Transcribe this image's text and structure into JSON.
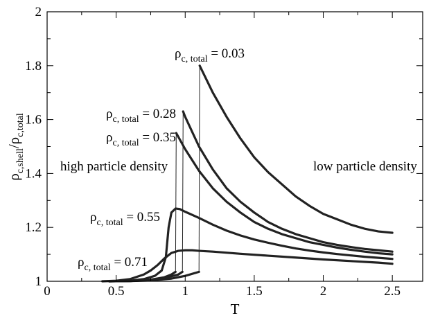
{
  "chart_data": {
    "type": "line",
    "title": "",
    "xlabel": "T",
    "ylabel": {
      "rho": "ρ",
      "num_sub": "c,shell",
      "slash": "/",
      "den_rho": "ρ",
      "den_sub": "c,total"
    },
    "xlim": [
      0,
      2.72
    ],
    "ylim": [
      1,
      2
    ],
    "xticks": [
      "0",
      "0.5",
      "1",
      "1.5",
      "2",
      "2.5"
    ],
    "xtick_values": [
      0,
      0.5,
      1,
      1.5,
      2,
      2.5
    ],
    "yticks": [
      "1",
      "1.2",
      "1.4",
      "1.6",
      "1.8",
      "2"
    ],
    "ytick_values": [
      1,
      1.2,
      1.4,
      1.6,
      1.8,
      2
    ],
    "grid": false,
    "legend": "none",
    "series": [
      {
        "label": "ρc, total = 0.03",
        "x": [
          0.45,
          0.6,
          0.75,
          0.9,
          1.0,
          1.1,
          1.105,
          1.2,
          1.3,
          1.4,
          1.5,
          1.6,
          1.7,
          1.8,
          1.9,
          2.0,
          2.1,
          2.2,
          2.3,
          2.4,
          2.5
        ],
        "y": [
          1.0,
          1.001,
          1.003,
          1.01,
          1.02,
          1.035,
          1.8,
          1.7,
          1.61,
          1.53,
          1.46,
          1.405,
          1.36,
          1.315,
          1.28,
          1.25,
          1.23,
          1.21,
          1.195,
          1.185,
          1.18
        ]
      },
      {
        "label": "ρc, total = 0.28",
        "x": [
          0.45,
          0.6,
          0.75,
          0.85,
          0.95,
          0.98,
          0.985,
          1.0,
          1.1,
          1.2,
          1.3,
          1.4,
          1.5,
          1.6,
          1.7,
          1.8,
          1.9,
          2.0,
          2.1,
          2.2,
          2.3,
          2.4,
          2.5
        ],
        "y": [
          1.0,
          1.001,
          1.005,
          1.012,
          1.025,
          1.035,
          1.63,
          1.61,
          1.5,
          1.415,
          1.345,
          1.295,
          1.255,
          1.22,
          1.195,
          1.175,
          1.16,
          1.145,
          1.135,
          1.127,
          1.12,
          1.115,
          1.11
        ]
      },
      {
        "label": "ρc, total = 0.35",
        "x": [
          0.45,
          0.6,
          0.75,
          0.85,
          0.9,
          0.93,
          0.935,
          1.0,
          1.1,
          1.2,
          1.3,
          1.4,
          1.5,
          1.6,
          1.7,
          1.8,
          1.9,
          2.0,
          2.1,
          2.2,
          2.3,
          2.4,
          2.5
        ],
        "y": [
          1.0,
          1.001,
          1.006,
          1.015,
          1.025,
          1.035,
          1.55,
          1.49,
          1.41,
          1.345,
          1.295,
          1.255,
          1.22,
          1.195,
          1.175,
          1.16,
          1.145,
          1.135,
          1.125,
          1.117,
          1.11,
          1.104,
          1.1
        ]
      },
      {
        "label": "ρc, total = 0.55",
        "x": [
          0.45,
          0.6,
          0.7,
          0.78,
          0.83,
          0.86,
          0.88,
          0.9,
          0.93,
          0.96,
          1.0,
          1.1,
          1.2,
          1.3,
          1.4,
          1.5,
          1.6,
          1.7,
          1.8,
          1.9,
          2.0,
          2.1,
          2.2,
          2.3,
          2.4,
          2.5
        ],
        "y": [
          1.0,
          1.002,
          1.008,
          1.02,
          1.04,
          1.09,
          1.2,
          1.255,
          1.27,
          1.268,
          1.258,
          1.235,
          1.21,
          1.188,
          1.17,
          1.155,
          1.143,
          1.132,
          1.122,
          1.114,
          1.107,
          1.101,
          1.096,
          1.091,
          1.087,
          1.083
        ]
      },
      {
        "label": "ρc, total = 0.71",
        "x": [
          0.4,
          0.5,
          0.6,
          0.7,
          0.75,
          0.8,
          0.85,
          0.9,
          0.95,
          1.0,
          1.05,
          1.1,
          1.2,
          1.4,
          1.6,
          1.8,
          2.0,
          2.2,
          2.4,
          2.5
        ],
        "y": [
          1.0,
          1.002,
          1.008,
          1.025,
          1.04,
          1.06,
          1.085,
          1.105,
          1.113,
          1.115,
          1.115,
          1.113,
          1.11,
          1.102,
          1.095,
          1.088,
          1.081,
          1.075,
          1.069,
          1.065
        ]
      }
    ],
    "annotations": [
      {
        "id": "a003",
        "rho": "ρ",
        "sub": "c, total",
        "text": " = 0.03"
      },
      {
        "id": "a028",
        "rho": "ρ",
        "sub": "c, total",
        "text": " = 0.28"
      },
      {
        "id": "a035",
        "rho": "ρ",
        "sub": "c, total",
        "text": " = 0.35"
      },
      {
        "id": "a055",
        "rho": "ρ",
        "sub": "c, total",
        "text": " = 0.55"
      },
      {
        "id": "a071",
        "rho": "ρ",
        "sub": "c, total",
        "text": " = 0.71"
      }
    ],
    "regions": {
      "high": "high particle density",
      "low": "low particle density"
    }
  }
}
